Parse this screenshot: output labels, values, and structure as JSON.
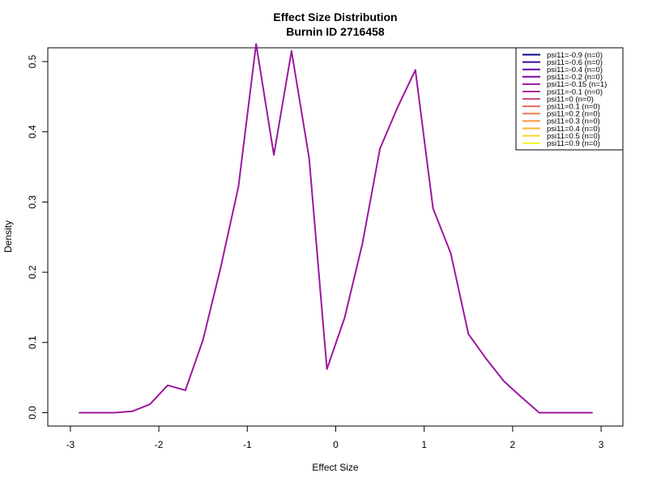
{
  "chart_data": {
    "type": "line",
    "title": "Effect Size Distribution",
    "subtitle": "Burnin ID 2716458",
    "xlabel": "Effect Size",
    "ylabel": "Density",
    "xlim": [
      -3,
      3
    ],
    "ylim": [
      0,
      0.5
    ],
    "x_ticks": [
      -3,
      -2,
      -1,
      0,
      1,
      2,
      3
    ],
    "x_tick_labels": [
      "-3",
      "-2",
      "-1",
      "0",
      "1",
      "2",
      "3"
    ],
    "y_ticks": [
      0.0,
      0.1,
      0.2,
      0.3,
      0.4,
      0.5
    ],
    "y_tick_labels": [
      "0.0",
      "0.1",
      "0.2",
      "0.3",
      "0.4",
      "0.5"
    ],
    "grid": false,
    "legend_position": "top-right",
    "legend": [
      {
        "label": "psi11=-0.9 (n=0)",
        "color": "#0d0887"
      },
      {
        "label": "psi11=-0.6 (n=0)",
        "color": "#3e049c"
      },
      {
        "label": "psi11=-0.4 (n=0)",
        "color": "#6300a7"
      },
      {
        "label": "psi11=-0.2 (n=0)",
        "color": "#7e03a8"
      },
      {
        "label": "psi11=-0.15 (n=1)",
        "color": "#9c179e"
      },
      {
        "label": "psi11=-0.1 (n=0)",
        "color": "#b12a90"
      },
      {
        "label": "psi11=0 (n=0)",
        "color": "#cc4778"
      },
      {
        "label": "psi11=0.1 (n=0)",
        "color": "#e16462"
      },
      {
        "label": "psi11=0.2 (n=0)",
        "color": "#ed7953"
      },
      {
        "label": "psi11=0.3 (n=0)",
        "color": "#f89540"
      },
      {
        "label": "psi11=0.4 (n=0)",
        "color": "#fdb42f"
      },
      {
        "label": "psi11=0.5 (n=0)",
        "color": "#f9d524"
      },
      {
        "label": "psi11=0.9 (n=0)",
        "color": "#f0f921"
      }
    ],
    "series": [
      {
        "name": "psi11=-0.15 (n=1)",
        "color": "#9c179e",
        "x": [
          -2.9,
          -2.7,
          -2.5,
          -2.3,
          -2.1,
          -1.9,
          -1.7,
          -1.5,
          -1.3,
          -1.1,
          -0.9,
          -0.7,
          -0.5,
          -0.3,
          -0.1,
          0.1,
          0.3,
          0.5,
          0.7,
          0.9,
          1.1,
          1.3,
          1.5,
          1.7,
          1.9,
          2.1,
          2.3,
          2.5,
          2.7,
          2.9
        ],
        "y": [
          0.0,
          0.0,
          0.0,
          0.002,
          0.012,
          0.039,
          0.032,
          0.104,
          0.207,
          0.322,
          0.525,
          0.367,
          0.515,
          0.362,
          0.062,
          0.135,
          0.24,
          0.376,
          0.435,
          0.488,
          0.291,
          0.227,
          0.112,
          0.077,
          0.045,
          0.022,
          0.0,
          0.0,
          0.0,
          0.0
        ]
      }
    ]
  }
}
